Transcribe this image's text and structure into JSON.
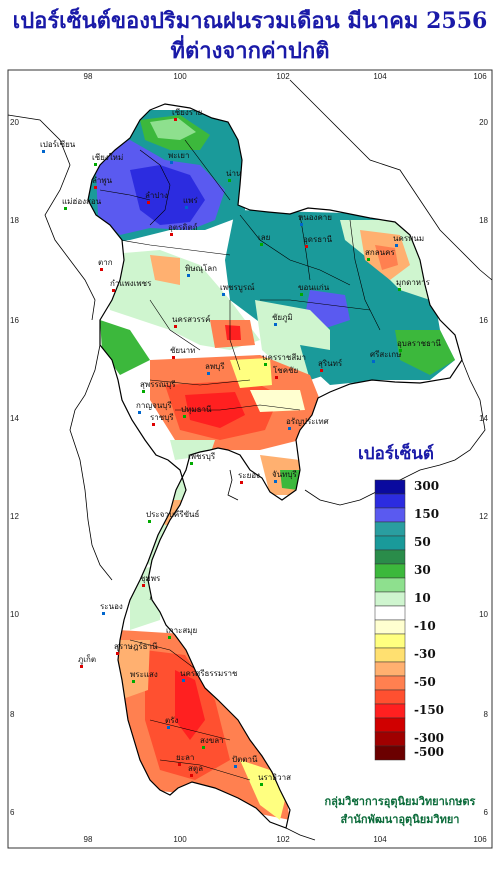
{
  "title": {
    "line1": "เปอร์เซ็นต์ของปริมาณฝนรวมเดือน  มีนาคม 2556",
    "line2": "ที่ต่างจากค่าปกติ"
  },
  "axes": {
    "longitude_ticks": [
      "98",
      "100",
      "102",
      "104",
      "106"
    ],
    "latitude_ticks": [
      "20",
      "18",
      "16",
      "14",
      "12",
      "10",
      "8",
      "6"
    ]
  },
  "legend": {
    "title": "เปอร์เซ็นต์",
    "classes": [
      {
        "label": "300",
        "color": "#0a0a9e"
      },
      {
        "label": "",
        "color": "#2c2ce0"
      },
      {
        "label": "150",
        "color": "#5a5af0"
      },
      {
        "label": "",
        "color": "#2a9ea0"
      },
      {
        "label": "50",
        "color": "#1a9a9a"
      },
      {
        "label": "",
        "color": "#2a8c4a"
      },
      {
        "label": "30",
        "color": "#3cb83c"
      },
      {
        "label": "",
        "color": "#8ee08e"
      },
      {
        "label": "10",
        "color": "#cff5cf"
      },
      {
        "label": "",
        "color": "#ffffff"
      },
      {
        "label": "-10",
        "color": "#ffffd0"
      },
      {
        "label": "",
        "color": "#ffff80"
      },
      {
        "label": "-30",
        "color": "#ffe070"
      },
      {
        "label": "",
        "color": "#ffb070"
      },
      {
        "label": "-50",
        "color": "#ff8050"
      },
      {
        "label": "",
        "color": "#ff5030"
      },
      {
        "label": "-150",
        "color": "#ff2020"
      },
      {
        "label": "",
        "color": "#d00000"
      },
      {
        "label": "-300",
        "color": "#a00000"
      },
      {
        "label": "-500",
        "color": "#6b0000"
      }
    ]
  },
  "places": [
    "เชียงราย",
    "เปอร์เซียน",
    "เชียงใหม่",
    "ลำพูน",
    "พะเยา",
    "น่าน",
    "ลำปาง",
    "แพร่",
    "แม่ฮ่องสอน",
    "อุตรดิตถ์",
    "หนองคาย",
    "เลย",
    "อุดรธานี",
    "นครพนม",
    "สกลนคร",
    "ตาก",
    "พิษณุโลก",
    "มุกดาหาร",
    "กำแพงเพชร",
    "เพชรบูรณ์",
    "ขอนแก่น",
    "นครสวรรค์",
    "ชัยภูมิ",
    "อุบลราชธานี",
    "ชัยนาท",
    "ลพบุรี",
    "นครราชสีมา",
    "สุรินทร์",
    "ศรีสะเกษ",
    "สุพรรณบุรี",
    "โชคชัย",
    "กาญจนบุรี",
    "ปทุมธานี",
    "ราชบุรี",
    "อรัญประเทศ",
    "เพชรบุรี",
    "ระยอง",
    "จันทบุรี",
    "ประจวบคีรีขันธ์",
    "ชุมพร",
    "ระนอง",
    "เกาะสมุย",
    "สุราษฎร์ธานี",
    "นครศรีธรรมราช",
    "พระแสง",
    "ภูเก็ต",
    "ตรัง",
    "สงขลา",
    "สตูล",
    "ปัตตานี",
    "นราธิวาส",
    "ยะลา"
  ],
  "credits": {
    "line1": "กลุ่มวิชาการอุตุนิยมวิทยาเกษตร",
    "line2": "สำนักพัฒนาอุตุนิยมวิทยา"
  }
}
